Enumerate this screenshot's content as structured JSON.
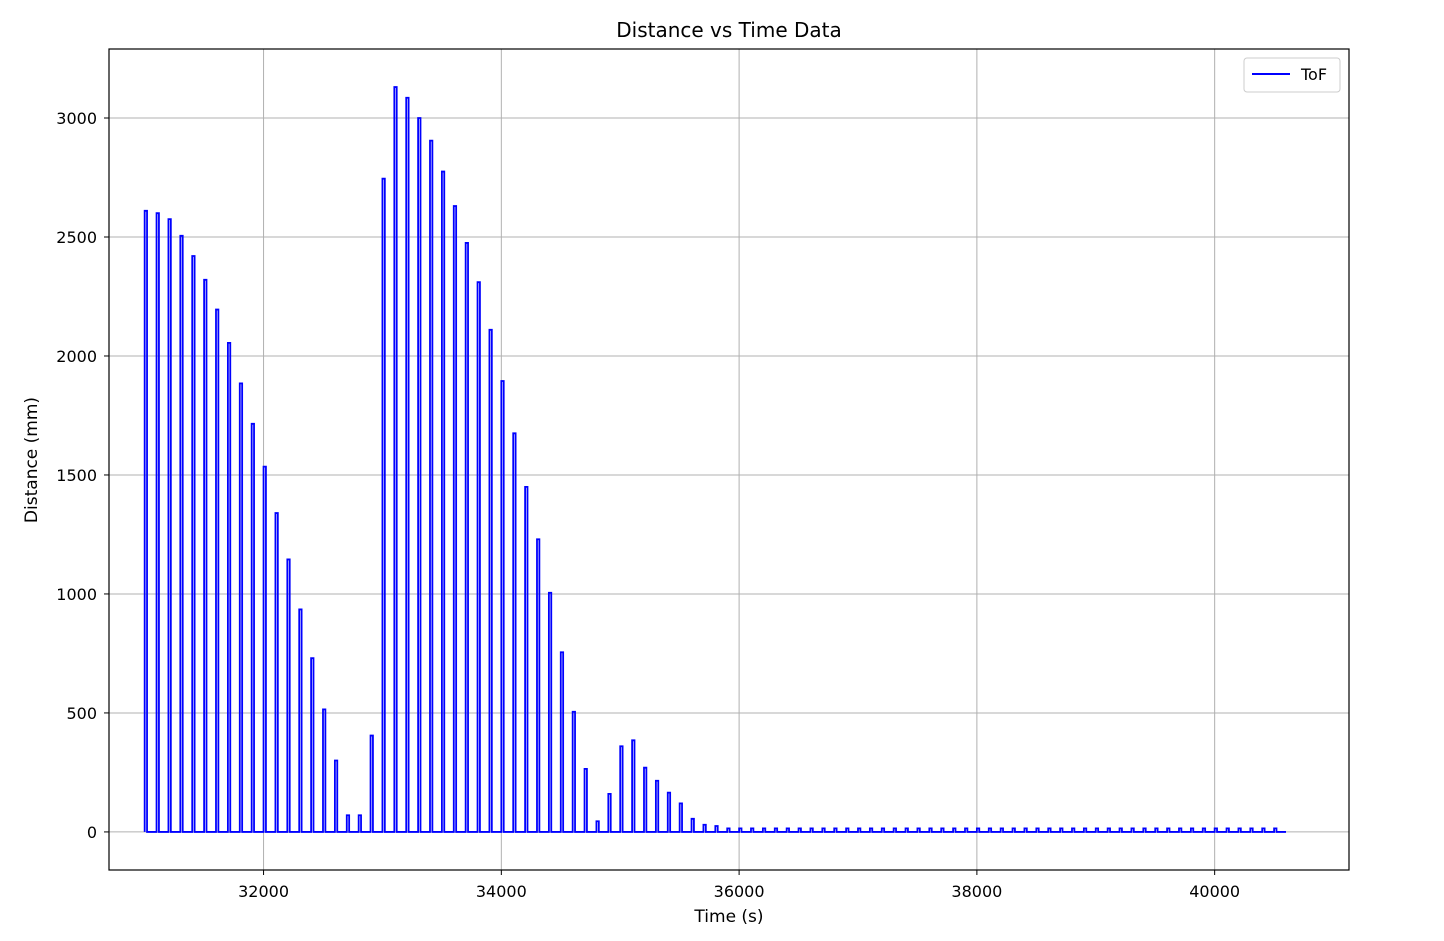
{
  "chart_data": {
    "type": "line",
    "title": "Distance vs Time Data",
    "xlabel": "Time (s)",
    "ylabel": "Distance (mm)",
    "xlim": [
      30700,
      41130
    ],
    "ylim": [
      -160,
      3290
    ],
    "xticks": [
      32000,
      34000,
      36000,
      38000,
      40000
    ],
    "yticks": [
      0,
      500,
      1000,
      1500,
      2000,
      2500,
      3000
    ],
    "grid": true,
    "legend_position": "top-right",
    "series": [
      {
        "name": "ToF",
        "color": "#0000ff",
        "pulse_width": 20,
        "pulses": [
          [
            31000,
            2610
          ],
          [
            31100,
            2600
          ],
          [
            31200,
            2575
          ],
          [
            31300,
            2505
          ],
          [
            31400,
            2420
          ],
          [
            31500,
            2320
          ],
          [
            31600,
            2195
          ],
          [
            31700,
            2055
          ],
          [
            31800,
            1885
          ],
          [
            31900,
            1715
          ],
          [
            32000,
            1535
          ],
          [
            32100,
            1340
          ],
          [
            32200,
            1145
          ],
          [
            32300,
            935
          ],
          [
            32400,
            730
          ],
          [
            32500,
            515
          ],
          [
            32600,
            300
          ],
          [
            32700,
            70
          ],
          [
            32800,
            70
          ],
          [
            32900,
            405
          ],
          [
            33000,
            2745
          ],
          [
            33100,
            3130
          ],
          [
            33200,
            3085
          ],
          [
            33300,
            3000
          ],
          [
            33400,
            2905
          ],
          [
            33500,
            2775
          ],
          [
            33600,
            2630
          ],
          [
            33700,
            2475
          ],
          [
            33800,
            2310
          ],
          [
            33900,
            2110
          ],
          [
            34000,
            1895
          ],
          [
            34100,
            1675
          ],
          [
            34200,
            1450
          ],
          [
            34300,
            1230
          ],
          [
            34400,
            1005
          ],
          [
            34500,
            755
          ],
          [
            34600,
            505
          ],
          [
            34700,
            265
          ],
          [
            34800,
            45
          ],
          [
            34900,
            160
          ],
          [
            35000,
            360
          ],
          [
            35100,
            385
          ],
          [
            35200,
            270
          ],
          [
            35300,
            215
          ],
          [
            35400,
            165
          ],
          [
            35500,
            120
          ],
          [
            35600,
            55
          ],
          [
            35700,
            30
          ],
          [
            35800,
            25
          ],
          [
            35900,
            15
          ],
          [
            36000,
            15
          ],
          [
            36100,
            15
          ],
          [
            36200,
            15
          ],
          [
            36300,
            15
          ],
          [
            36400,
            15
          ],
          [
            36500,
            15
          ],
          [
            36600,
            15
          ],
          [
            36700,
            15
          ],
          [
            36800,
            15
          ],
          [
            36900,
            15
          ],
          [
            37000,
            15
          ],
          [
            37100,
            15
          ],
          [
            37200,
            15
          ],
          [
            37300,
            15
          ],
          [
            37400,
            15
          ],
          [
            37500,
            15
          ],
          [
            37600,
            15
          ],
          [
            37700,
            15
          ],
          [
            37800,
            15
          ],
          [
            37900,
            15
          ],
          [
            38000,
            15
          ],
          [
            38100,
            15
          ],
          [
            38200,
            15
          ],
          [
            38300,
            15
          ],
          [
            38400,
            15
          ],
          [
            38500,
            15
          ],
          [
            38600,
            15
          ],
          [
            38700,
            15
          ],
          [
            38800,
            15
          ],
          [
            38900,
            15
          ],
          [
            39000,
            15
          ],
          [
            39100,
            15
          ],
          [
            39200,
            15
          ],
          [
            39300,
            15
          ],
          [
            39400,
            15
          ],
          [
            39500,
            15
          ],
          [
            39600,
            15
          ],
          [
            39700,
            15
          ],
          [
            39800,
            15
          ],
          [
            39900,
            15
          ],
          [
            40000,
            15
          ],
          [
            40100,
            15
          ],
          [
            40200,
            15
          ],
          [
            40300,
            15
          ],
          [
            40400,
            15
          ],
          [
            40500,
            15
          ]
        ],
        "baseline": 0,
        "x_end": 40600
      }
    ]
  }
}
